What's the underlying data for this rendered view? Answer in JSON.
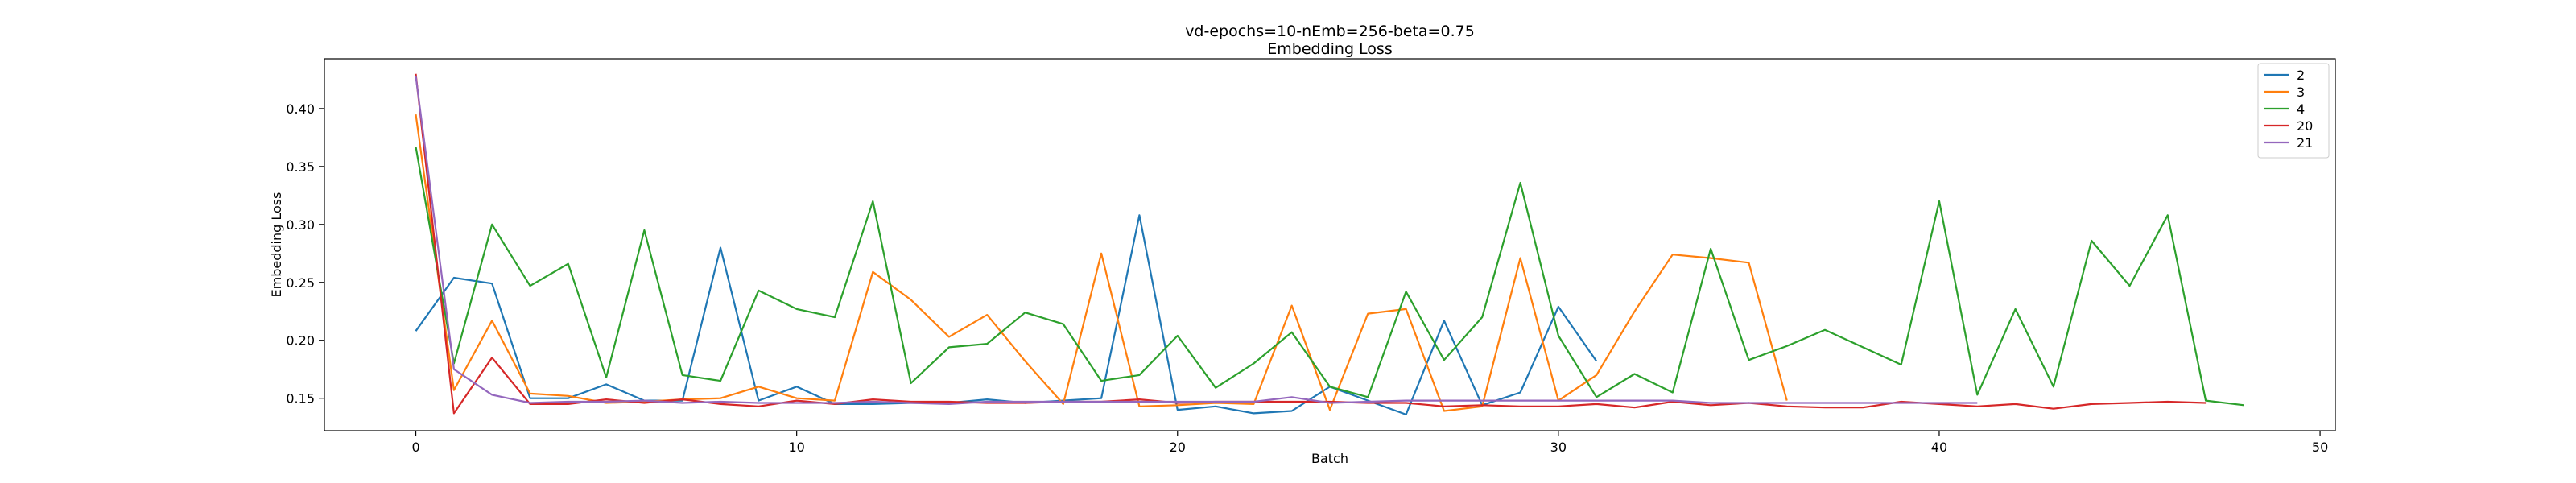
{
  "chart_data": {
    "type": "line",
    "title": "vd-epochs=10-nEmb=256-beta=0.75",
    "subtitle": "Embedding Loss",
    "xlabel": "Batch",
    "ylabel": "Embedding Loss",
    "xlim": [
      -2.4,
      50.4
    ],
    "ylim": [
      0.122,
      0.443
    ],
    "x_ticks": [
      0,
      10,
      20,
      30,
      40,
      50
    ],
    "y_ticks": [
      0.15,
      0.2,
      0.25,
      0.3,
      0.35,
      0.4
    ],
    "y_tick_labels": [
      "0.15",
      "0.20",
      "0.25",
      "0.30",
      "0.35",
      "0.40"
    ],
    "grid": false,
    "legend_position": "top-right",
    "series": [
      {
        "name": "2",
        "color": "#1f77b4",
        "values": [
          0.208,
          0.254,
          0.249,
          0.15,
          0.15,
          0.162,
          0.148,
          0.148,
          0.28,
          0.148,
          0.16,
          0.145,
          0.145,
          0.146,
          0.146,
          0.149,
          0.146,
          0.148,
          0.15,
          0.308,
          0.14,
          0.143,
          0.137,
          0.139,
          0.16,
          0.148,
          0.136,
          0.217,
          0.144,
          0.155,
          0.229,
          0.182
        ]
      },
      {
        "name": "3",
        "color": "#ff7f0e",
        "values": [
          0.395,
          0.157,
          0.217,
          0.154,
          0.152,
          0.146,
          0.147,
          0.149,
          0.15,
          0.16,
          0.15,
          0.148,
          0.259,
          0.235,
          0.203,
          0.222,
          0.182,
          0.145,
          0.275,
          0.143,
          0.144,
          0.146,
          0.145,
          0.23,
          0.14,
          0.223,
          0.227,
          0.139,
          0.143,
          0.271,
          0.148,
          0.17,
          0.225,
          0.274,
          0.271,
          0.267,
          0.148
        ]
      },
      {
        "name": "4",
        "color": "#2ca02c",
        "values": [
          0.367,
          0.18,
          0.3,
          0.247,
          0.266,
          0.168,
          0.295,
          0.17,
          0.165,
          0.243,
          0.227,
          0.22,
          0.32,
          0.163,
          0.194,
          0.197,
          0.224,
          0.214,
          0.165,
          0.17,
          0.204,
          0.159,
          0.18,
          0.207,
          0.16,
          0.151,
          0.242,
          0.183,
          0.22,
          0.336,
          0.204,
          0.151,
          0.171,
          0.155,
          0.279,
          0.183,
          0.195,
          0.209,
          0.194,
          0.179,
          0.32,
          0.153,
          0.227,
          0.16,
          0.286,
          0.247,
          0.308,
          0.148,
          0.144
        ]
      },
      {
        "name": "20",
        "color": "#d62728",
        "values": [
          0.43,
          0.137,
          0.185,
          0.145,
          0.145,
          0.149,
          0.146,
          0.149,
          0.145,
          0.143,
          0.148,
          0.145,
          0.149,
          0.147,
          0.147,
          0.146,
          0.146,
          0.147,
          0.147,
          0.149,
          0.146,
          0.147,
          0.147,
          0.147,
          0.147,
          0.146,
          0.146,
          0.143,
          0.144,
          0.143,
          0.143,
          0.145,
          0.142,
          0.147,
          0.144,
          0.146,
          0.143,
          0.142,
          0.142,
          0.147,
          0.145,
          0.143,
          0.145,
          0.141,
          0.145,
          0.146,
          0.147,
          0.146
        ]
      },
      {
        "name": "21",
        "color": "#9467bd",
        "values": [
          0.428,
          0.175,
          0.153,
          0.146,
          0.147,
          0.147,
          0.148,
          0.146,
          0.147,
          0.146,
          0.146,
          0.146,
          0.147,
          0.146,
          0.145,
          0.147,
          0.147,
          0.147,
          0.147,
          0.147,
          0.147,
          0.147,
          0.147,
          0.151,
          0.146,
          0.147,
          0.148,
          0.148,
          0.148,
          0.148,
          0.148,
          0.148,
          0.148,
          0.148,
          0.146,
          0.146,
          0.146,
          0.146,
          0.146,
          0.146,
          0.146,
          0.146
        ]
      }
    ]
  }
}
